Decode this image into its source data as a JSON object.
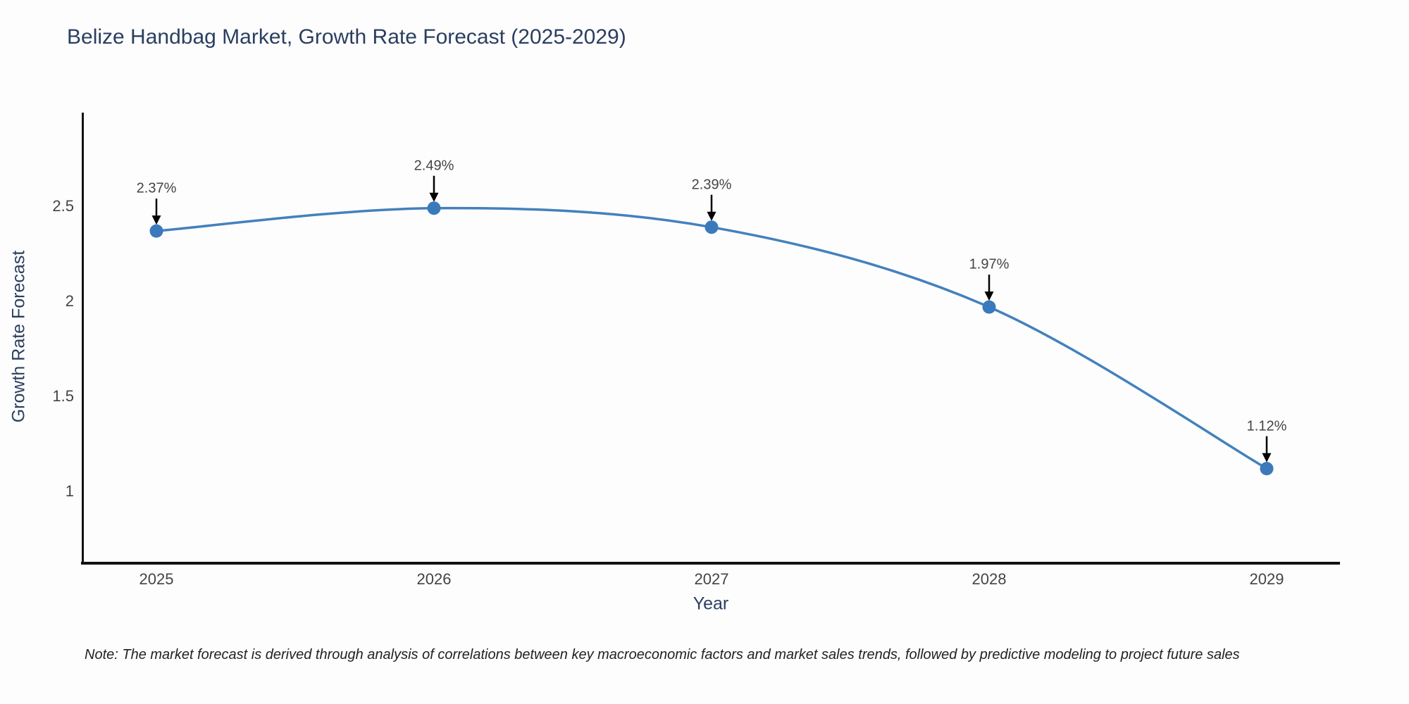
{
  "title": "Belize Handbag Market, Growth Rate Forecast (2025-2029)",
  "note": "Note: The market forecast is derived through analysis of correlations between key macroeconomic factors and market sales trends, followed by predictive modeling to project future sales",
  "chart_data": {
    "type": "line",
    "title": "Belize Handbag Market, Growth Rate Forecast (2025-2029)",
    "xlabel": "Year",
    "ylabel": "Growth Rate Forecast",
    "categories": [
      "2025",
      "2026",
      "2027",
      "2028",
      "2029"
    ],
    "values": [
      2.37,
      2.49,
      2.39,
      1.97,
      1.12
    ],
    "labels": [
      "2.37%",
      "2.49%",
      "2.39%",
      "1.97%",
      "1.12%"
    ],
    "yticks": [
      "2.5",
      "2",
      "1.5",
      "1"
    ],
    "ylim": [
      0.62,
      2.99
    ],
    "grid": false,
    "legend_position": "none",
    "line_color": "#4381bd",
    "marker_color": "#3a7abc",
    "arrow_color": "#000000",
    "axis_line_color": "#111111",
    "line_shape": "spline"
  }
}
